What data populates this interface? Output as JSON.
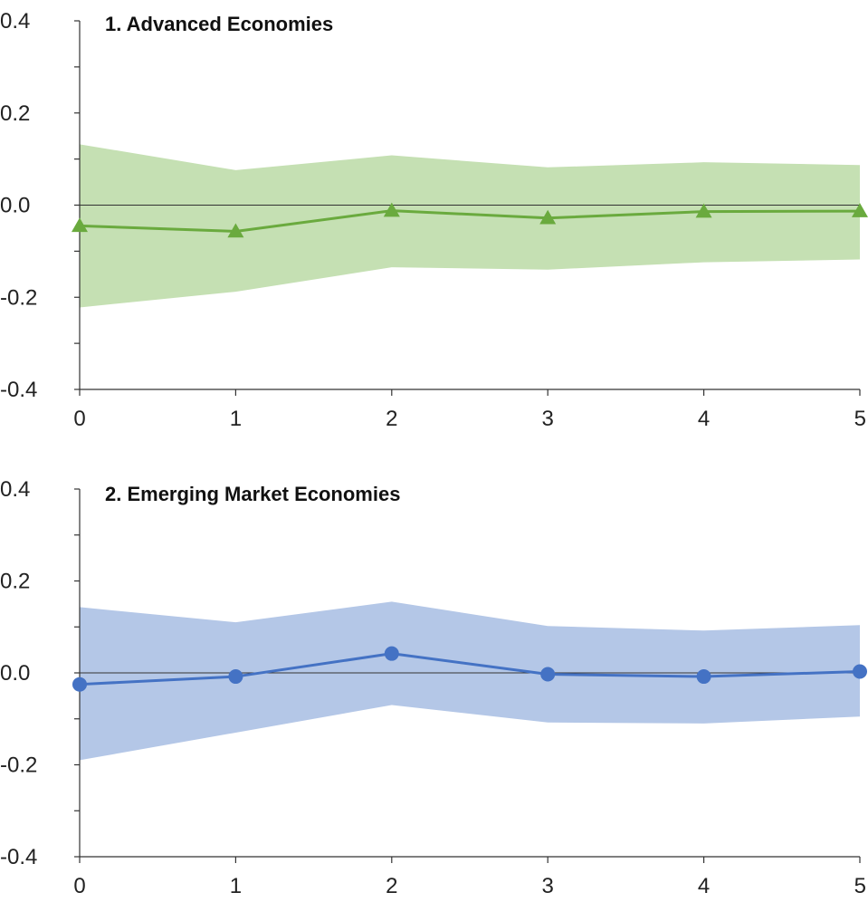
{
  "chart_data": [
    {
      "type": "line",
      "title": "1. Advanced Economies",
      "x": [
        0,
        1,
        2,
        3,
        4,
        5
      ],
      "ylim": [
        -0.4,
        0.4
      ],
      "y_ticks": [
        "0.4",
        "0.2",
        "0.0",
        "-0.2",
        "-0.4"
      ],
      "x_ticks": [
        "0",
        "1",
        "2",
        "3",
        "4",
        "5"
      ],
      "series": [
        {
          "values": [
            -0.045,
            -0.057,
            -0.012,
            -0.028,
            -0.014,
            -0.013
          ],
          "color": "#6aaa3e",
          "marker": "triangle"
        }
      ],
      "band": {
        "lower": [
          -0.222,
          -0.188,
          -0.135,
          -0.14,
          -0.124,
          -0.118
        ],
        "upper": [
          0.132,
          0.076,
          0.108,
          0.082,
          0.093,
          0.087
        ],
        "color": "#c5e0b3"
      },
      "grid": false
    },
    {
      "type": "line",
      "title": "2. Emerging Market Economies",
      "x": [
        0,
        1,
        2,
        3,
        4,
        5
      ],
      "ylim": [
        -0.4,
        0.4
      ],
      "y_ticks": [
        "0.4",
        "0.2",
        "0.0",
        "-0.2",
        "-0.4"
      ],
      "x_ticks": [
        "0",
        "1",
        "2",
        "3",
        "4",
        "5"
      ],
      "series": [
        {
          "values": [
            -0.025,
            -0.008,
            0.042,
            -0.003,
            -0.008,
            0.003
          ],
          "color": "#4472c4",
          "marker": "circle"
        }
      ],
      "band": {
        "lower": [
          -0.19,
          -0.13,
          -0.07,
          -0.108,
          -0.11,
          -0.095
        ],
        "upper": [
          0.143,
          0.11,
          0.155,
          0.102,
          0.092,
          0.104
        ],
        "color": "#b4c7e7"
      },
      "grid": false
    }
  ]
}
